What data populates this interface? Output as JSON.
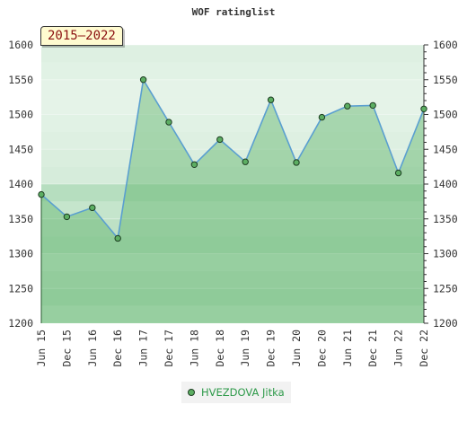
{
  "chart_data": {
    "type": "area",
    "title": "WOF ratinglist",
    "period_label": "2015—2022",
    "categories": [
      "Jun 15",
      "Dec 15",
      "Jun 16",
      "Dec 16",
      "Jun 17",
      "Dec 17",
      "Jun 18",
      "Dec 18",
      "Jun 19",
      "Dec 19",
      "Jun 20",
      "Dec 20",
      "Jun 21",
      "Dec 21",
      "Jun 22",
      "Dec 22"
    ],
    "series": [
      {
        "name": "HVEZDOVA Jitka",
        "values": [
          1385,
          1353,
          1366,
          1322,
          1550,
          1489,
          1428,
          1464,
          1432,
          1521,
          1431,
          1496,
          1512,
          1513,
          1416,
          1508
        ]
      }
    ],
    "ylim": [
      1200,
      1600
    ],
    "yticks": [
      1200,
      1250,
      1300,
      1350,
      1400,
      1450,
      1500,
      1550,
      1600
    ],
    "grid": true,
    "legend_position": "bottom",
    "colors": {
      "line": "#5a9fd0",
      "marker": "#5cae62",
      "marker_edge": "#1d3d22",
      "area": "#5fb36a",
      "legend_text": "#2e9a4a"
    }
  }
}
